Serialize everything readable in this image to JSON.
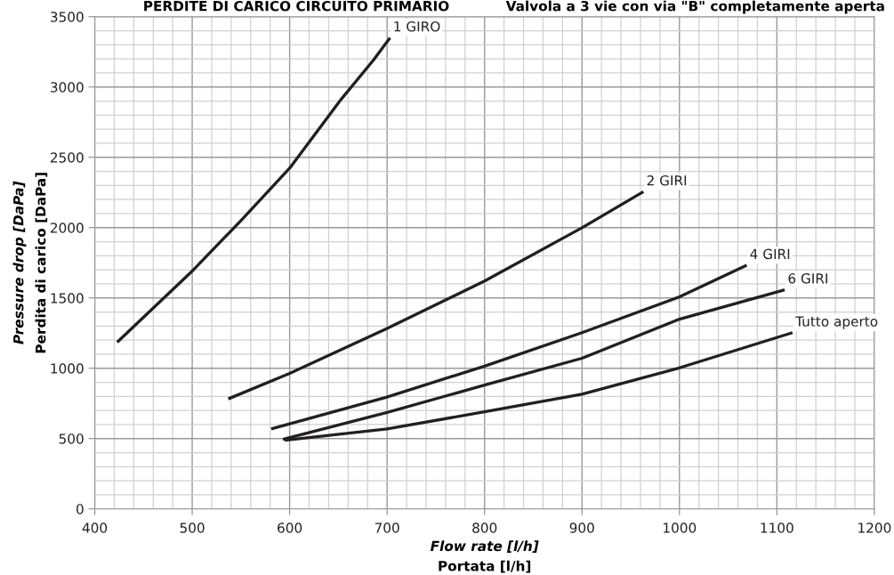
{
  "chart_data": {
    "type": "line",
    "title": "PERDITE DI CARICO CIRCUITO PRIMARIO",
    "subtitle": "Valvola a 3 vie con via \"B\" completamente aperta",
    "xlabel": "Flow rate [l/h]",
    "ylabel": "Pressure drop [DaPa]",
    "annotations": [
      "Perdita di carico [DaPa]",
      "Portata [l/h]"
    ],
    "series": [
      {
        "name": "1 GIRO",
        "color": "#231f20",
        "x": [
          423,
          501,
          550,
          600,
          653,
          686,
          703
        ],
        "values": [
          1185,
          1698,
          2050,
          2423,
          2914,
          3191,
          3350
        ]
      },
      {
        "name": "2 GIRI",
        "color": "#231f20",
        "x": [
          537,
          600,
          699,
          800,
          900,
          963
        ],
        "values": [
          782,
          963,
          1280,
          1620,
          1999,
          2255
        ]
      },
      {
        "name": "4 GIRI",
        "color": "#231f20",
        "x": [
          581,
          699,
          800,
          900,
          1000,
          1069
        ],
        "values": [
          569,
          793,
          1015,
          1253,
          1508,
          1732
        ]
      },
      {
        "name": "6 GIRI",
        "color": "#231f20",
        "x": [
          593,
          700,
          800,
          900,
          1000,
          1108
        ],
        "values": [
          494,
          686,
          880,
          1071,
          1349,
          1558
        ]
      },
      {
        "name": "Tutto aperto",
        "color": "#231f20",
        "x": [
          595,
          700,
          800,
          900,
          1000,
          1116
        ],
        "values": [
          488,
          569,
          690,
          816,
          1003,
          1253
        ]
      }
    ],
    "xlim": [
      400,
      1200
    ],
    "xticks": [
      400,
      500,
      600,
      700,
      800,
      900,
      1000,
      1100,
      1200
    ],
    "ylim": [
      0,
      3500
    ],
    "yticks": [
      0,
      500,
      1000,
      1500,
      2000,
      2500,
      3000,
      3500
    ],
    "grid": true,
    "marker": "none",
    "line_style": "solid",
    "legend": false
  }
}
